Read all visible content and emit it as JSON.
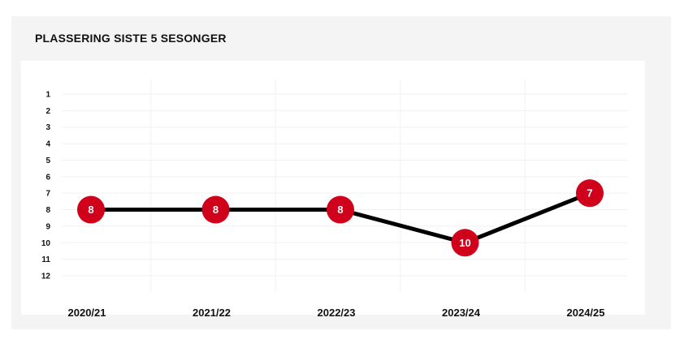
{
  "chart_data": {
    "type": "line",
    "title": "PLASSERING SISTE 5 SESONGER",
    "xlabel": "",
    "ylabel": "",
    "categories": [
      "2020/21",
      "2021/22",
      "2022/23",
      "2023/24",
      "2024/25"
    ],
    "series": [
      {
        "values": [
          8,
          8,
          8,
          10,
          7
        ]
      }
    ],
    "y_ticks": [
      "1",
      "2",
      "3",
      "4",
      "5",
      "6",
      "7",
      "8",
      "9",
      "10",
      "11",
      "12"
    ],
    "ylim": [
      1,
      12
    ],
    "y_inverted": true,
    "grid": true,
    "line_color": "#000000",
    "marker_color": "#d0021b",
    "label_color": "#ffffff"
  }
}
